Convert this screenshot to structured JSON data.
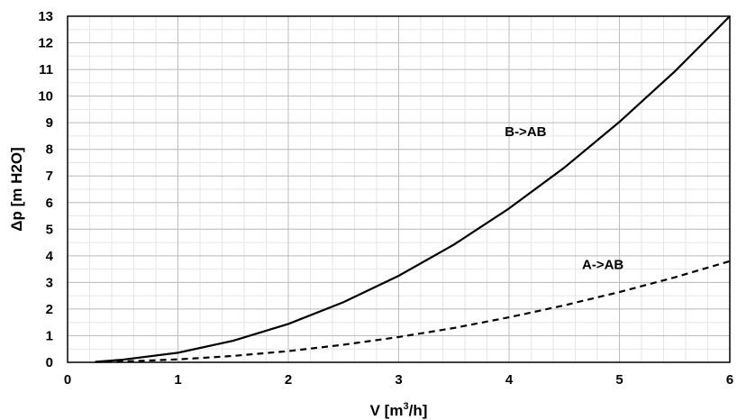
{
  "chart_data": {
    "type": "line",
    "title": "",
    "xlabel": "V [m³/h]",
    "xlabel_parts": {
      "main": "V [m",
      "sup": "3",
      "tail": "/h]"
    },
    "ylabel": "Δp [m H2O]",
    "xlim": [
      0,
      6
    ],
    "ylim": [
      0,
      13
    ],
    "xticks": [
      "0",
      "1",
      "2",
      "3",
      "4",
      "5",
      "6"
    ],
    "yticks": [
      "0",
      "1",
      "2",
      "3",
      "4",
      "5",
      "6",
      "7",
      "8",
      "9",
      "10",
      "11",
      "12",
      "13"
    ],
    "grid": true,
    "minor_grid": true,
    "legend": "none",
    "series": [
      {
        "name": "B->AB",
        "style": "solid",
        "color": "#000000",
        "x": [
          0.25,
          0.5,
          1.0,
          1.5,
          2.0,
          2.5,
          3.0,
          3.5,
          4.0,
          4.5,
          5.0,
          5.5,
          6.0
        ],
        "y": [
          0.02,
          0.1,
          0.36,
          0.81,
          1.44,
          2.26,
          3.25,
          4.42,
          5.78,
          7.31,
          9.03,
          10.92,
          13.0
        ]
      },
      {
        "name": "A->AB",
        "style": "dashed",
        "color": "#000000",
        "x": [
          0.25,
          0.5,
          1.0,
          1.5,
          2.0,
          2.5,
          3.0,
          3.5,
          4.0,
          4.5,
          5.0,
          5.5,
          6.0
        ],
        "y": [
          0.01,
          0.03,
          0.11,
          0.24,
          0.42,
          0.66,
          0.95,
          1.29,
          1.69,
          2.14,
          2.64,
          3.19,
          3.8
        ]
      }
    ],
    "annotations": [
      {
        "text": "B->AB",
        "x": 4.15,
        "y": 8.5
      },
      {
        "text": "A->AB",
        "x": 4.85,
        "y": 3.5
      }
    ]
  }
}
